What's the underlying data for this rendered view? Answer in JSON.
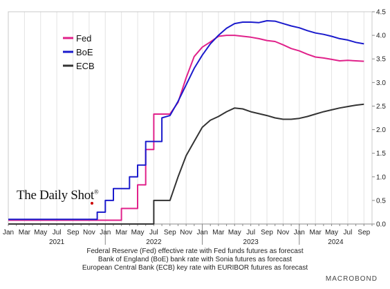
{
  "chart_data": {
    "type": "line",
    "x_start": "2021-01",
    "x_end": "2024-10",
    "ylim": [
      0,
      4.5
    ],
    "y_ticks": [
      "0.0",
      "0.5",
      "1.0",
      "1.5",
      "2.0",
      "2.5",
      "3.0",
      "3.5",
      "4.0",
      "4.5"
    ],
    "month_ticks": [
      "Jan",
      "Mar",
      "May",
      "Jul",
      "Sep",
      "Nov",
      "Jan",
      "Mar",
      "May",
      "Jul",
      "Sep",
      "Nov",
      "Jan",
      "Mar",
      "May",
      "Jul",
      "Sep",
      "Nov",
      "Jan",
      "Mar",
      "May",
      "Jul",
      "Sep"
    ],
    "year_labels": [
      "2021",
      "2022",
      "2023",
      "2024"
    ],
    "grid": "vertical",
    "legend_position": "top-left",
    "series": [
      {
        "name": "Fed",
        "color": "#e0218a",
        "points": [
          [
            "2021-01",
            0.08
          ],
          [
            "2022-03",
            0.08
          ],
          [
            "2022-03",
            0.33
          ],
          [
            "2022-05",
            0.33
          ],
          [
            "2022-05",
            0.83
          ],
          [
            "2022-06",
            0.83
          ],
          [
            "2022-06",
            1.58
          ],
          [
            "2022-07",
            1.58
          ],
          [
            "2022-07",
            2.33
          ],
          [
            "2022-09",
            2.33
          ],
          [
            "2022-10",
            2.58
          ],
          [
            "2022-11",
            3.1
          ],
          [
            "2022-12",
            3.55
          ],
          [
            "2023-01",
            3.75
          ],
          [
            "2023-02",
            3.86
          ],
          [
            "2023-03",
            3.98
          ],
          [
            "2023-04",
            4.0
          ],
          [
            "2023-05",
            4.0
          ],
          [
            "2023-07",
            3.96
          ],
          [
            "2023-08",
            3.93
          ],
          [
            "2023-09",
            3.89
          ],
          [
            "2023-10",
            3.87
          ],
          [
            "2023-11",
            3.8
          ],
          [
            "2023-12",
            3.72
          ],
          [
            "2024-01",
            3.67
          ],
          [
            "2024-02",
            3.6
          ],
          [
            "2024-03",
            3.54
          ],
          [
            "2024-04",
            3.52
          ],
          [
            "2024-05",
            3.49
          ],
          [
            "2024-06",
            3.46
          ],
          [
            "2024-07",
            3.47
          ],
          [
            "2024-08",
            3.46
          ],
          [
            "2024-09",
            3.45
          ]
        ]
      },
      {
        "name": "BoE",
        "color": "#1a1acc",
        "points": [
          [
            "2021-01",
            0.1
          ],
          [
            "2021-12",
            0.1
          ],
          [
            "2021-12",
            0.25
          ],
          [
            "2022-01",
            0.25
          ],
          [
            "2022-01",
            0.5
          ],
          [
            "2022-02",
            0.5
          ],
          [
            "2022-02",
            0.75
          ],
          [
            "2022-04",
            0.75
          ],
          [
            "2022-04",
            1.0
          ],
          [
            "2022-05",
            1.0
          ],
          [
            "2022-05",
            1.25
          ],
          [
            "2022-06",
            1.25
          ],
          [
            "2022-06",
            1.75
          ],
          [
            "2022-08",
            1.75
          ],
          [
            "2022-08",
            2.25
          ],
          [
            "2022-09",
            2.3
          ],
          [
            "2022-10",
            2.6
          ],
          [
            "2022-11",
            2.95
          ],
          [
            "2022-12",
            3.3
          ],
          [
            "2023-01",
            3.58
          ],
          [
            "2023-02",
            3.82
          ],
          [
            "2023-03",
            4.0
          ],
          [
            "2023-04",
            4.15
          ],
          [
            "2023-05",
            4.25
          ],
          [
            "2023-06",
            4.28
          ],
          [
            "2023-07",
            4.28
          ],
          [
            "2023-08",
            4.27
          ],
          [
            "2023-09",
            4.31
          ],
          [
            "2023-10",
            4.3
          ],
          [
            "2023-11",
            4.25
          ],
          [
            "2023-12",
            4.2
          ],
          [
            "2024-01",
            4.16
          ],
          [
            "2024-02",
            4.1
          ],
          [
            "2024-03",
            4.05
          ],
          [
            "2024-04",
            4.02
          ],
          [
            "2024-05",
            3.98
          ],
          [
            "2024-06",
            3.93
          ],
          [
            "2024-07",
            3.9
          ],
          [
            "2024-08",
            3.85
          ],
          [
            "2024-09",
            3.82
          ]
        ]
      },
      {
        "name": "ECB",
        "color": "#333333",
        "points": [
          [
            "2021-01",
            0.0
          ],
          [
            "2022-07",
            0.0
          ],
          [
            "2022-07",
            0.5
          ],
          [
            "2022-08",
            0.5
          ],
          [
            "2022-09",
            0.5
          ],
          [
            "2022-10",
            1.0
          ],
          [
            "2022-11",
            1.45
          ],
          [
            "2022-12",
            1.75
          ],
          [
            "2023-01",
            2.05
          ],
          [
            "2023-02",
            2.2
          ],
          [
            "2023-03",
            2.28
          ],
          [
            "2023-04",
            2.38
          ],
          [
            "2023-05",
            2.46
          ],
          [
            "2023-06",
            2.44
          ],
          [
            "2023-07",
            2.38
          ],
          [
            "2023-08",
            2.34
          ],
          [
            "2023-09",
            2.3
          ],
          [
            "2023-10",
            2.25
          ],
          [
            "2023-11",
            2.22
          ],
          [
            "2023-12",
            2.22
          ],
          [
            "2024-01",
            2.24
          ],
          [
            "2024-02",
            2.28
          ],
          [
            "2024-03",
            2.33
          ],
          [
            "2024-04",
            2.38
          ],
          [
            "2024-05",
            2.42
          ],
          [
            "2024-06",
            2.46
          ],
          [
            "2024-07",
            2.49
          ],
          [
            "2024-08",
            2.52
          ],
          [
            "2024-09",
            2.54
          ]
        ]
      }
    ],
    "legend": [
      "Fed",
      "BoE",
      "ECB"
    ],
    "footnotes": [
      "Federal Reserve (Fed) effective rate with Fed funds futures as forecast",
      "Bank of England (BoE) bank rate with Sonia futures as forecast",
      "European Central Bank (ECB) key rate with EURIBOR futures as forecast"
    ]
  },
  "branding": {
    "logo_text": "The Daily Shot",
    "logo_mark": "®",
    "source": "MACROBOND"
  }
}
